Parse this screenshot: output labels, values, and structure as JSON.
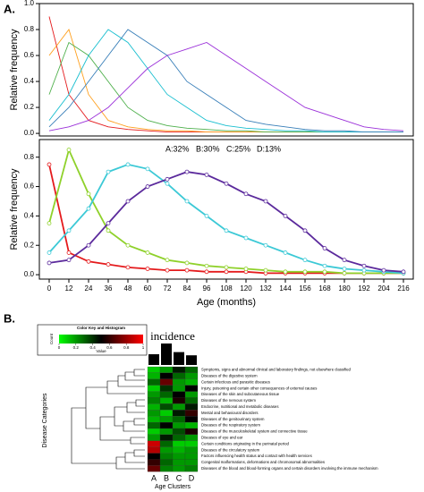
{
  "panel_labels": [
    "A.",
    "B."
  ],
  "chart_data": [
    {
      "type": "line",
      "ylabel": "Relative frequency",
      "x": [
        0,
        12,
        24,
        36,
        48,
        60,
        72,
        84,
        96,
        108,
        120,
        132,
        144,
        156,
        168,
        180,
        192,
        204,
        216
      ],
      "xlim": [
        -6,
        222
      ],
      "ylim": [
        -0.02,
        1.0
      ],
      "yticks": [
        {
          "value": 0.0,
          "label": "0.0"
        },
        {
          "value": 0.2,
          "label": "0.2"
        },
        {
          "value": 0.4,
          "label": "0.4"
        },
        {
          "value": 0.6,
          "label": "0.6"
        },
        {
          "value": 0.8,
          "label": "0.8"
        },
        {
          "value": 1.0,
          "label": "1.0"
        }
      ],
      "series": [
        {
          "color": "#e41a1c",
          "values": [
            0.9,
            0.3,
            0.1,
            0.05,
            0.03,
            0.02,
            0.01,
            0.01,
            0.01,
            0.01,
            0.01,
            0.01,
            0.01,
            0.01,
            0.01,
            0.01,
            0.01,
            0.01,
            0.01
          ]
        },
        {
          "color": "#ff9f1c",
          "values": [
            0.6,
            0.8,
            0.3,
            0.1,
            0.05,
            0.03,
            0.02,
            0.02,
            0.01,
            0.01,
            0.01,
            0.01,
            0.01,
            0.01,
            0.01,
            0.01,
            0.01,
            0.01,
            0.01
          ]
        },
        {
          "color": "#4daf4a",
          "values": [
            0.3,
            0.7,
            0.6,
            0.4,
            0.2,
            0.1,
            0.06,
            0.04,
            0.03,
            0.02,
            0.02,
            0.01,
            0.01,
            0.01,
            0.01,
            0.01,
            0.01,
            0.01,
            0.01
          ]
        },
        {
          "color": "#17becf",
          "values": [
            0.1,
            0.3,
            0.6,
            0.8,
            0.7,
            0.5,
            0.3,
            0.2,
            0.1,
            0.06,
            0.04,
            0.03,
            0.02,
            0.02,
            0.01,
            0.01,
            0.01,
            0.01,
            0.01
          ]
        },
        {
          "color": "#377eb8",
          "values": [
            0.05,
            0.2,
            0.4,
            0.6,
            0.8,
            0.7,
            0.6,
            0.4,
            0.3,
            0.2,
            0.1,
            0.07,
            0.05,
            0.03,
            0.02,
            0.02,
            0.01,
            0.01,
            0.01
          ]
        },
        {
          "color": "#9b30d9",
          "values": [
            0.02,
            0.05,
            0.1,
            0.2,
            0.35,
            0.5,
            0.6,
            0.65,
            0.7,
            0.6,
            0.5,
            0.4,
            0.3,
            0.2,
            0.15,
            0.1,
            0.05,
            0.03,
            0.02
          ]
        }
      ]
    },
    {
      "type": "line",
      "ylabel": "Relative frequency",
      "xlabel": "Age  (months)",
      "x": [
        0,
        12,
        24,
        36,
        48,
        60,
        72,
        84,
        96,
        108,
        120,
        132,
        144,
        156,
        168,
        180,
        192,
        204,
        216
      ],
      "xlim": [
        -6,
        222
      ],
      "ylim": [
        -0.03,
        0.92
      ],
      "xticks": [
        0,
        12,
        24,
        36,
        48,
        60,
        72,
        84,
        96,
        108,
        120,
        132,
        144,
        156,
        168,
        180,
        192,
        204,
        216
      ],
      "yticks": [
        {
          "value": 0.0,
          "label": "0.0"
        },
        {
          "value": 0.2,
          "label": "0.2"
        },
        {
          "value": 0.4,
          "label": "0.4"
        },
        {
          "value": 0.6,
          "label": "0.6"
        },
        {
          "value": 0.8,
          "label": "0.8"
        }
      ],
      "series": [
        {
          "name": "A:32%",
          "color": "#e41a1c",
          "values": [
            0.75,
            0.15,
            0.09,
            0.07,
            0.05,
            0.04,
            0.03,
            0.03,
            0.02,
            0.02,
            0.02,
            0.01,
            0.01,
            0.01,
            0.01,
            0.01,
            0.01,
            0.01,
            0.01
          ]
        },
        {
          "name": "B:30%",
          "color": "#8fd12b",
          "values": [
            0.35,
            0.85,
            0.55,
            0.3,
            0.2,
            0.15,
            0.1,
            0.08,
            0.06,
            0.05,
            0.04,
            0.03,
            0.02,
            0.02,
            0.02,
            0.01,
            0.01,
            0.01,
            0.01
          ]
        },
        {
          "name": "C:25%",
          "color": "#3cc9d6",
          "values": [
            0.15,
            0.3,
            0.45,
            0.7,
            0.75,
            0.72,
            0.62,
            0.5,
            0.4,
            0.3,
            0.25,
            0.2,
            0.15,
            0.1,
            0.06,
            0.04,
            0.03,
            0.02,
            0.01
          ]
        },
        {
          "name": "D:13%",
          "color": "#5b2a9c",
          "values": [
            0.08,
            0.1,
            0.2,
            0.35,
            0.5,
            0.6,
            0.65,
            0.7,
            0.68,
            0.62,
            0.55,
            0.5,
            0.4,
            0.3,
            0.18,
            0.1,
            0.06,
            0.03,
            0.02
          ]
        }
      ]
    },
    {
      "type": "heatmap",
      "ylabel": "Disease Categories",
      "xlabel": "Age Clusters",
      "categories": [
        "A",
        "B",
        "C",
        "D"
      ],
      "colors": [
        "#00ff00",
        "#000000",
        "#ff0000"
      ],
      "color_key": {
        "title": "Color Key and Histogram",
        "xlabel": "Value",
        "ylabel": "Count",
        "ticks": [
          0,
          0.2,
          0.4,
          0.6,
          0.8,
          1
        ]
      },
      "rows": [
        "Symptoms, signs and abnormal clinical and laboratory findings, not elsewhere classified",
        "Diseases of the digestive system",
        "Certain infectious and parasitic diseases",
        "Injury, poisoning and certain other consequences of external causes",
        "Diseases of the skin and subcutaneous tissue",
        "Diseases of the nervous system",
        "Endocrine, nutritional and metabolic diseases",
        "Mental and behavioural disorders",
        "Diseases of the genitourinary system",
        "Diseases of the respiratory system",
        "Diseases of the musculoskeletal system and connective tissue",
        "Diseases of eye and ear",
        "Certain conditions originating in the perinatal period",
        "Diseases of the circulatory system",
        "Factors influencing health status and contact with health services",
        "Congenital malformations, deformations and chromosomal abnormalities",
        "Diseases of the blood and blood-forming organs and certain disorders involving the immune mechanism"
      ],
      "values": [
        [
          0.1,
          0.2,
          0.45,
          0.3
        ],
        [
          0.15,
          0.5,
          0.3,
          0.2
        ],
        [
          0.3,
          0.7,
          0.2,
          0.15
        ],
        [
          0.1,
          0.4,
          0.2,
          0.5
        ],
        [
          0.2,
          0.3,
          0.5,
          0.2
        ],
        [
          0.25,
          0.15,
          0.55,
          0.3
        ],
        [
          0.15,
          0.35,
          0.2,
          0.45
        ],
        [
          0.2,
          0.1,
          0.45,
          0.6
        ],
        [
          0.15,
          0.2,
          0.3,
          0.5
        ],
        [
          0.3,
          0.5,
          0.2,
          0.15
        ],
        [
          0.1,
          0.2,
          0.35,
          0.55
        ],
        [
          0.2,
          0.45,
          0.3,
          0.2
        ],
        [
          0.9,
          0.3,
          0.1,
          0.1
        ],
        [
          0.85,
          0.2,
          0.15,
          0.2
        ],
        [
          0.5,
          0.25,
          0.2,
          0.2
        ],
        [
          0.6,
          0.3,
          0.2,
          0.2
        ],
        [
          0.7,
          0.25,
          0.2,
          0.25
        ]
      ]
    },
    {
      "type": "bar",
      "title": "incidence",
      "categories": [
        "A",
        "B",
        "C",
        "D"
      ],
      "values": [
        0.5,
        1.0,
        0.6,
        0.45
      ],
      "color": "#000000",
      "ylim": [
        0,
        1
      ]
    }
  ]
}
